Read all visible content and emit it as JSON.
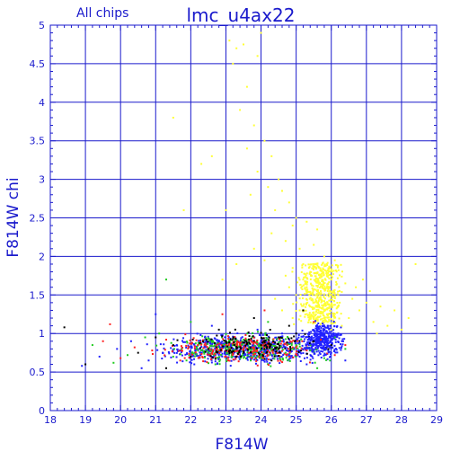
{
  "chart_data": {
    "type": "scatter",
    "header_left": "All chips",
    "title": "lmc_u4ax22",
    "xlabel": "F814W",
    "ylabel": "F814W chi",
    "xlim": [
      18,
      29
    ],
    "ylim": [
      0,
      5
    ],
    "xticks": [
      18,
      19,
      20,
      21,
      22,
      23,
      24,
      25,
      26,
      27,
      28,
      29
    ],
    "yticks": [
      0,
      0.5,
      1,
      1.5,
      2,
      2.5,
      3,
      3.5,
      4,
      4.5,
      5
    ],
    "ytick_labels": [
      "0",
      "0.5",
      "1",
      "1.5",
      "2",
      "2.5",
      "3",
      "3.5",
      "4",
      "4.5",
      "5"
    ],
    "grid": true,
    "colors": {
      "axis": "#1a1acc",
      "grid": "#1a1acc",
      "text": "#1a1acc"
    },
    "series": [
      {
        "color": "#ffff33",
        "points": [
          [
            23.1,
            4.8
          ],
          [
            23.3,
            4.7
          ],
          [
            23.5,
            4.75
          ],
          [
            23.2,
            4.5
          ],
          [
            23.6,
            4.2
          ],
          [
            23.9,
            4.6
          ],
          [
            24.0,
            4.9
          ],
          [
            23.4,
            3.9
          ],
          [
            23.8,
            3.7
          ],
          [
            24.1,
            3.5
          ],
          [
            23.6,
            3.4
          ],
          [
            24.3,
            3.3
          ],
          [
            23.9,
            3.1
          ],
          [
            24.5,
            3.0
          ],
          [
            24.2,
            2.9
          ],
          [
            23.7,
            2.8
          ],
          [
            24.6,
            2.85
          ],
          [
            24.8,
            2.7
          ],
          [
            24.4,
            2.6
          ],
          [
            25.0,
            2.5
          ],
          [
            24.9,
            2.4
          ],
          [
            25.3,
            2.45
          ],
          [
            25.6,
            2.35
          ],
          [
            24.7,
            2.2
          ],
          [
            25.1,
            2.1
          ],
          [
            25.5,
            2.15
          ],
          [
            25.8,
            2.0
          ],
          [
            26.1,
            1.95
          ],
          [
            25.2,
            1.9
          ],
          [
            24.9,
            1.85
          ],
          [
            25.4,
            1.8
          ],
          [
            25.7,
            1.75
          ],
          [
            26.0,
            1.7
          ],
          [
            26.4,
            1.65
          ],
          [
            25.3,
            1.6
          ],
          [
            25.9,
            1.55
          ],
          [
            26.2,
            1.5
          ],
          [
            26.6,
            1.45
          ],
          [
            27.0,
            1.4
          ],
          [
            27.4,
            1.35
          ],
          [
            27.8,
            1.3
          ],
          [
            28.2,
            1.2
          ],
          [
            28.4,
            1.9
          ],
          [
            25.0,
            1.5
          ],
          [
            25.6,
            1.4
          ],
          [
            26.8,
            1.3
          ],
          [
            27.2,
            1.15
          ],
          [
            27.6,
            1.1
          ],
          [
            28.0,
            1.05
          ],
          [
            25.4,
            1.35
          ],
          [
            26.1,
            1.25
          ],
          [
            26.5,
            1.2
          ],
          [
            24.6,
            1.3
          ],
          [
            24.8,
            1.6
          ],
          [
            25.2,
            1.7
          ],
          [
            26.7,
            1.6
          ],
          [
            27.1,
            1.55
          ],
          [
            25.5,
            1.25
          ],
          [
            25.9,
            1.15
          ],
          [
            26.3,
            1.1
          ],
          [
            24.3,
            2.3
          ],
          [
            23.8,
            2.1
          ],
          [
            23.3,
            1.9
          ],
          [
            22.9,
            1.7
          ],
          [
            23.0,
            2.6
          ],
          [
            22.6,
            3.3
          ],
          [
            22.3,
            3.2
          ],
          [
            21.8,
            2.6
          ],
          [
            21.5,
            3.8
          ],
          [
            24.9,
            1.2
          ],
          [
            25.1,
            1.3
          ],
          [
            25.8,
            1.3
          ],
          [
            26.9,
            1.7
          ],
          [
            27.3,
            1.0
          ],
          [
            26.0,
            1.05
          ],
          [
            24.4,
            1.45
          ],
          [
            25.7,
            1.55
          ],
          [
            26.2,
            1.35
          ],
          [
            24.1,
            1.95
          ],
          [
            24.7,
            1.75
          ]
        ]
      },
      {
        "color": "#000000",
        "points": [
          [
            18.4,
            1.08
          ],
          [
            19.0,
            0.6
          ],
          [
            20.5,
            0.75
          ],
          [
            21.0,
            0.95
          ],
          [
            21.5,
            0.85
          ],
          [
            22.0,
            0.7
          ],
          [
            22.5,
            0.8
          ],
          [
            23.0,
            0.9
          ],
          [
            23.5,
            0.75
          ],
          [
            24.0,
            0.85
          ],
          [
            24.5,
            0.95
          ],
          [
            25.0,
            1.0
          ],
          [
            25.5,
            0.9
          ],
          [
            26.0,
            0.85
          ],
          [
            24.8,
            1.1
          ],
          [
            23.8,
            1.2
          ],
          [
            25.2,
            1.3
          ],
          [
            22.8,
            1.05
          ],
          [
            21.3,
            0.55
          ],
          [
            24.3,
            0.65
          ]
        ]
      },
      {
        "color": "#2222ff",
        "points": [
          [
            18.9,
            0.58
          ],
          [
            19.4,
            0.7
          ],
          [
            19.9,
            0.8
          ],
          [
            20.3,
            0.9
          ],
          [
            20.8,
            0.65
          ],
          [
            21.2,
            0.75
          ],
          [
            21.6,
            0.85
          ],
          [
            22.1,
            0.6
          ],
          [
            22.4,
            0.95
          ],
          [
            22.8,
            0.72
          ],
          [
            23.2,
            0.8
          ],
          [
            23.6,
            0.68
          ],
          [
            24.0,
            0.9
          ],
          [
            24.4,
            0.78
          ],
          [
            24.8,
            0.88
          ],
          [
            25.1,
            0.7
          ],
          [
            25.4,
            0.95
          ],
          [
            25.7,
            0.82
          ],
          [
            26.0,
            0.75
          ],
          [
            26.3,
            0.9
          ],
          [
            25.6,
            1.05
          ],
          [
            25.9,
            1.1
          ],
          [
            26.2,
            1.0
          ],
          [
            24.6,
            1.0
          ],
          [
            21.0,
            1.25
          ],
          [
            22.6,
            1.1
          ],
          [
            23.9,
            1.05
          ],
          [
            25.3,
            0.6
          ],
          [
            26.4,
            0.65
          ],
          [
            20.6,
            0.55
          ]
        ]
      },
      {
        "color": "#22cc22",
        "points": [
          [
            19.2,
            0.85
          ],
          [
            19.8,
            0.62
          ],
          [
            20.2,
            0.72
          ],
          [
            20.7,
            0.95
          ],
          [
            21.1,
            1.0
          ],
          [
            21.5,
            0.7
          ],
          [
            21.9,
            0.88
          ],
          [
            22.3,
            0.78
          ],
          [
            22.7,
            0.6
          ],
          [
            23.1,
            0.82
          ],
          [
            23.5,
            0.92
          ],
          [
            23.9,
            0.7
          ],
          [
            24.3,
            0.8
          ],
          [
            24.7,
            0.75
          ],
          [
            25.0,
            0.85
          ],
          [
            25.4,
            0.78
          ],
          [
            25.8,
            0.68
          ],
          [
            26.1,
            0.95
          ],
          [
            26.4,
            0.8
          ],
          [
            21.3,
            1.7
          ],
          [
            22.0,
            1.15
          ],
          [
            24.2,
            1.15
          ],
          [
            25.6,
            0.55
          ]
        ]
      },
      {
        "color": "#ff2222",
        "points": [
          [
            19.5,
            0.9
          ],
          [
            20.0,
            0.68
          ],
          [
            20.4,
            0.82
          ],
          [
            20.9,
            0.78
          ],
          [
            21.3,
            0.92
          ],
          [
            21.7,
            0.65
          ],
          [
            22.2,
            0.85
          ],
          [
            22.6,
            0.75
          ],
          [
            23.0,
            0.7
          ],
          [
            23.4,
            0.88
          ],
          [
            23.8,
            0.8
          ],
          [
            24.2,
            0.72
          ],
          [
            24.6,
            0.9
          ],
          [
            24.9,
            0.82
          ],
          [
            25.3,
            0.78
          ],
          [
            25.7,
            0.92
          ],
          [
            26.1,
            0.72
          ],
          [
            26.4,
            0.85
          ],
          [
            19.7,
            1.12
          ],
          [
            22.9,
            1.25
          ],
          [
            24.1,
            1.3
          ],
          [
            25.5,
            1.15
          ]
        ]
      }
    ],
    "dense_regions": [
      {
        "color": "#ffff33",
        "x": [
          24.8,
          26.5
        ],
        "y": [
          1.0,
          1.8
        ],
        "count": 520
      },
      {
        "color": "#2222ff",
        "x": [
          20.5,
          26.5
        ],
        "y": [
          0.55,
          1.05
        ],
        "count": 620
      },
      {
        "color": "#22cc22",
        "x": [
          20.5,
          26.5
        ],
        "y": [
          0.55,
          1.05
        ],
        "count": 260
      },
      {
        "color": "#ff2222",
        "x": [
          20.5,
          26.5
        ],
        "y": [
          0.55,
          1.05
        ],
        "count": 220
      },
      {
        "color": "#000000",
        "x": [
          21.0,
          26.5
        ],
        "y": [
          0.6,
          1.1
        ],
        "count": 150
      },
      {
        "color": "#2222ff",
        "x": [
          25.0,
          26.5
        ],
        "y": [
          0.65,
          1.2
        ],
        "count": 380
      }
    ]
  }
}
